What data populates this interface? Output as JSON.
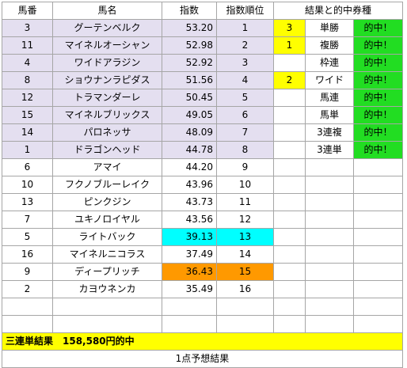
{
  "headers": {
    "umaban": "馬番",
    "name": "馬名",
    "index": "指数",
    "rank": "指数順位",
    "result": "結果と的中券種"
  },
  "rows": [
    {
      "umaban": "3",
      "name": "グーテンベルク",
      "index": "53.20",
      "rank": "1",
      "finish": "3",
      "bet_type": "単勝",
      "hit": "的中！"
    },
    {
      "umaban": "11",
      "name": "マイネルオーシャン",
      "index": "52.98",
      "rank": "2",
      "finish": "1",
      "bet_type": "複勝",
      "hit": "的中！"
    },
    {
      "umaban": "4",
      "name": "ワイドアラジン",
      "index": "52.92",
      "rank": "3",
      "finish": "",
      "bet_type": "枠連",
      "hit": "的中！"
    },
    {
      "umaban": "8",
      "name": "ショウナンラピダス",
      "index": "51.56",
      "rank": "4",
      "finish": "2",
      "bet_type": "ワイド",
      "hit": "的中！"
    },
    {
      "umaban": "12",
      "name": "トラマンダーレ",
      "index": "50.45",
      "rank": "5",
      "finish": "",
      "bet_type": "馬連",
      "hit": "的中！"
    },
    {
      "umaban": "15",
      "name": "マイネルブリックス",
      "index": "49.05",
      "rank": "6",
      "finish": "",
      "bet_type": "馬単",
      "hit": "的中！"
    },
    {
      "umaban": "14",
      "name": "パロネッサ",
      "index": "48.09",
      "rank": "7",
      "finish": "",
      "bet_type": "3連複",
      "hit": "的中！"
    },
    {
      "umaban": "1",
      "name": "ドラゴンヘッド",
      "index": "44.78",
      "rank": "8",
      "finish": "",
      "bet_type": "3連単",
      "hit": "的中！"
    },
    {
      "umaban": "6",
      "name": "アマイ",
      "index": "44.20",
      "rank": "9",
      "finish": "",
      "bet_type": "",
      "hit": ""
    },
    {
      "umaban": "10",
      "name": "フクノブルーレイク",
      "index": "43.96",
      "rank": "10",
      "finish": "",
      "bet_type": "",
      "hit": ""
    },
    {
      "umaban": "13",
      "name": "ピンクジン",
      "index": "43.73",
      "rank": "11",
      "finish": "",
      "bet_type": "",
      "hit": ""
    },
    {
      "umaban": "7",
      "name": "ユキノロイヤル",
      "index": "43.56",
      "rank": "12",
      "finish": "",
      "bet_type": "",
      "hit": ""
    },
    {
      "umaban": "5",
      "name": "ライトバック",
      "index": "39.13",
      "rank": "13",
      "finish": "",
      "bet_type": "",
      "hit": ""
    },
    {
      "umaban": "16",
      "name": "マイネルニコラス",
      "index": "37.49",
      "rank": "14",
      "finish": "",
      "bet_type": "",
      "hit": ""
    },
    {
      "umaban": "9",
      "name": "ディープリッチ",
      "index": "36.43",
      "rank": "15",
      "finish": "",
      "bet_type": "",
      "hit": ""
    },
    {
      "umaban": "2",
      "name": "カヨウネンカ",
      "index": "35.49",
      "rank": "16",
      "finish": "",
      "bet_type": "",
      "hit": ""
    },
    {
      "umaban": "",
      "name": "",
      "index": "",
      "rank": "",
      "finish": "",
      "bet_type": "",
      "hit": ""
    },
    {
      "umaban": "",
      "name": "",
      "index": "",
      "rank": "",
      "finish": "",
      "bet_type": "",
      "hit": ""
    }
  ],
  "summary": "三連単結果　158,580円的中",
  "footer": "1点予想結果",
  "colors": {
    "selected_row": "#e4dff0",
    "finish_highlight": "#ffff00",
    "hit_highlight": "#22dd22",
    "index_13": "#00ffff",
    "index_15": "#ff9900"
  }
}
